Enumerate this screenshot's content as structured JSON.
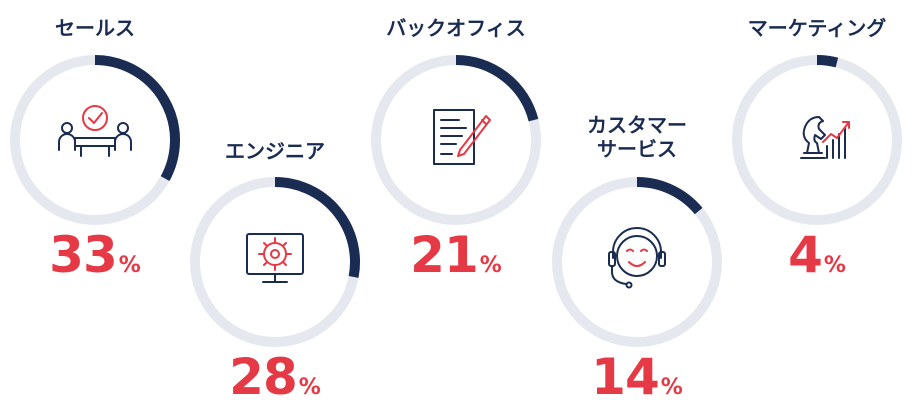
{
  "chart_data": {
    "type": "pie",
    "categories": [
      "セールス",
      "エンジニア",
      "バックオフィス",
      "カスタマー\nサービス",
      "マーケティング"
    ],
    "values": [
      33,
      28,
      21,
      14,
      4
    ],
    "unit": "%"
  },
  "items": [
    {
      "label": "セールス",
      "value": "33",
      "unit": "%",
      "icon": "meeting-icon"
    },
    {
      "label": "エンジニア",
      "value": "28",
      "unit": "%",
      "icon": "gear-monitor-icon"
    },
    {
      "label": "バックオフィス",
      "value": "21",
      "unit": "%",
      "icon": "document-pen-icon"
    },
    {
      "label": "カスタマー\nサービス",
      "value": "14",
      "unit": "%",
      "icon": "headset-icon"
    },
    {
      "label": "マーケティング",
      "value": "4",
      "unit": "%",
      "icon": "chess-knight-chart-icon"
    }
  ],
  "colors": {
    "track": "#e6e8ef",
    "arc": "#1a2c52",
    "accent": "#e63946",
    "icon": "#1a2c52"
  }
}
